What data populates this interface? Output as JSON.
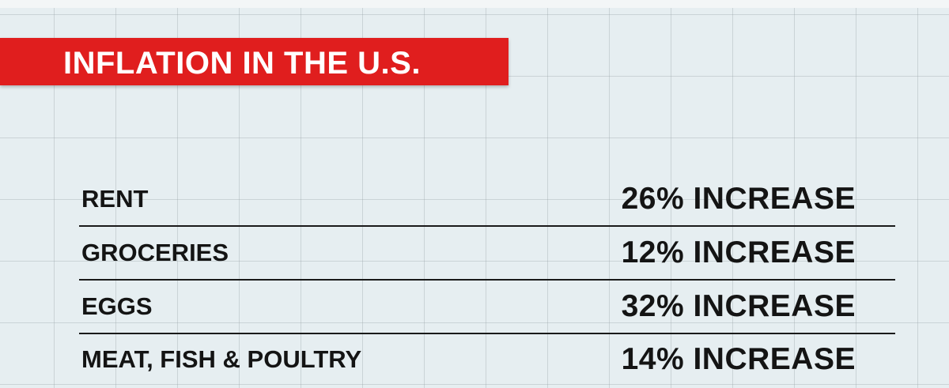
{
  "header": {
    "title": "INFLATION IN THE U.S."
  },
  "table": {
    "rows": [
      [
        "RENT",
        "26% INCREASE"
      ],
      [
        "GROCERIES",
        "12% INCREASE"
      ],
      [
        "EGGS",
        "32% INCREASE"
      ],
      [
        "MEAT, FISH & POULTRY",
        "14% INCREASE"
      ]
    ]
  }
}
